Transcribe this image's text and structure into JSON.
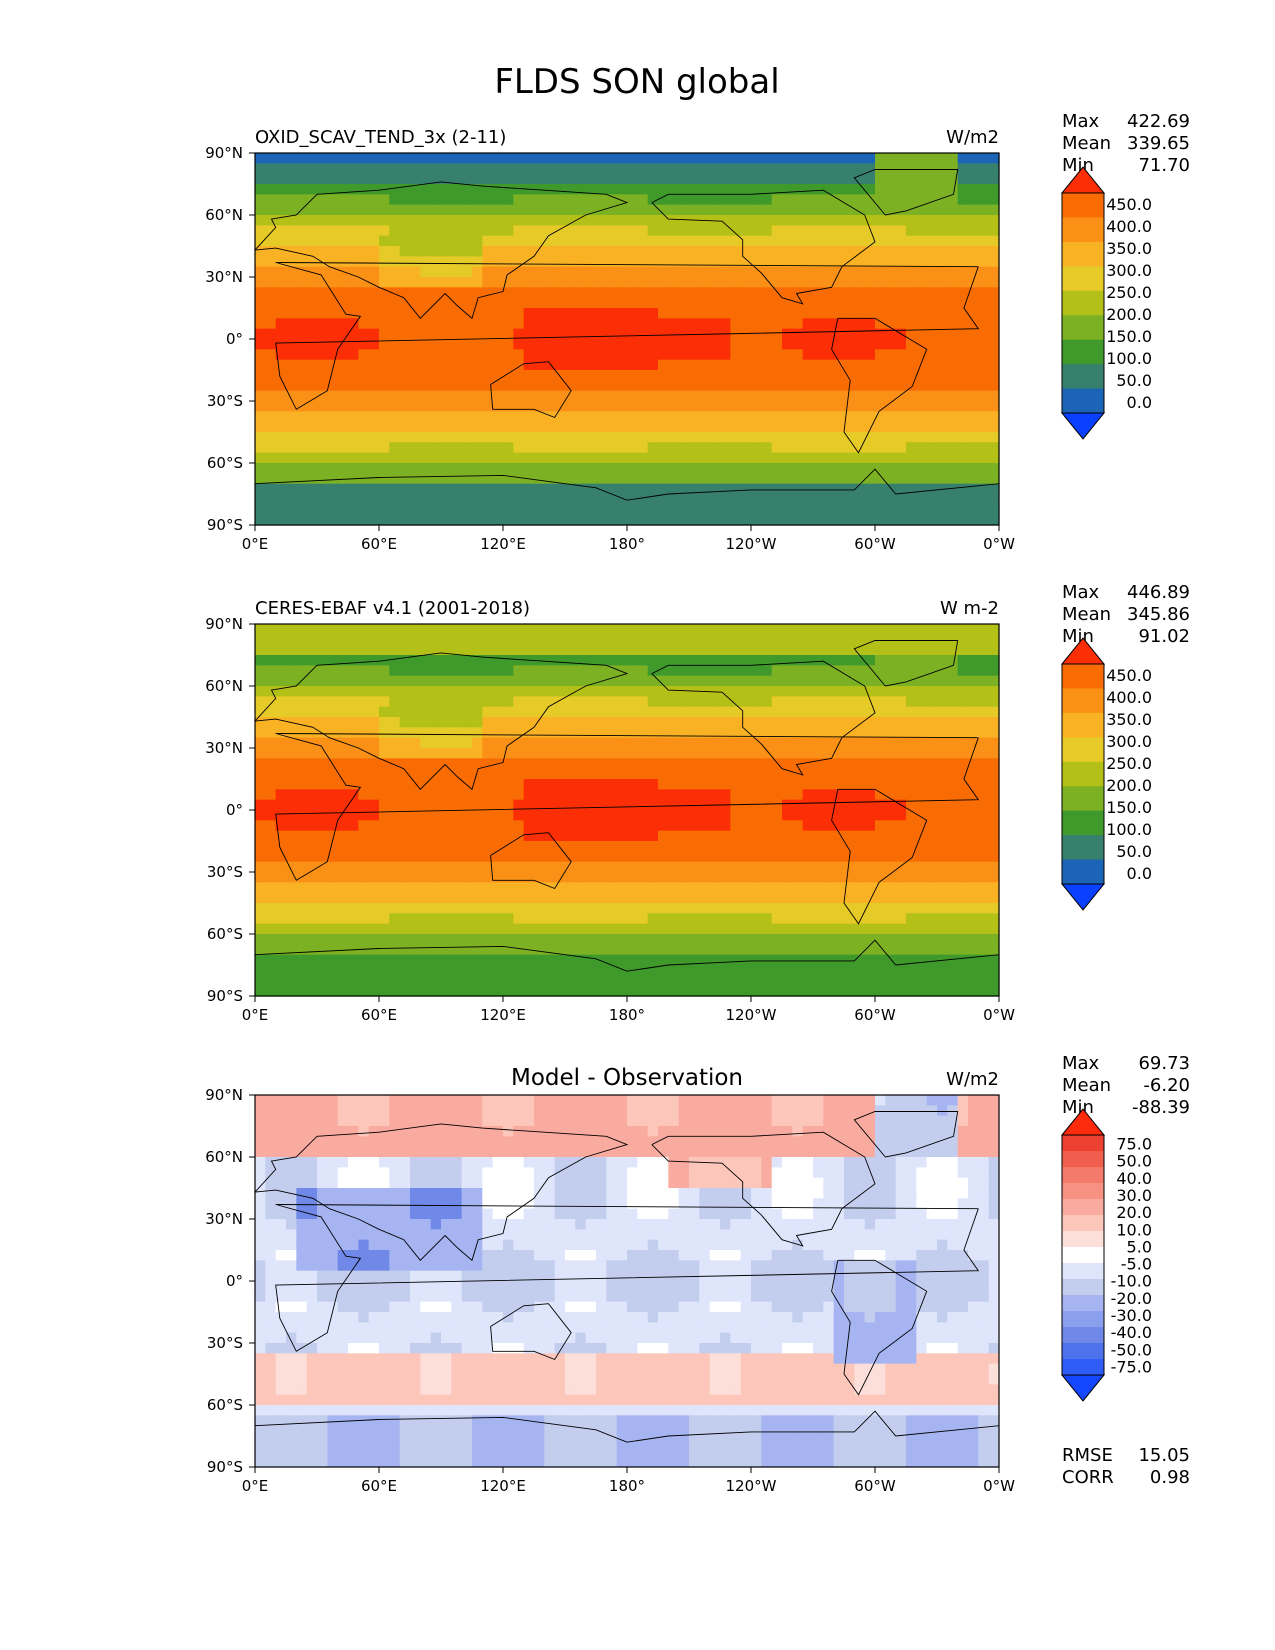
{
  "title": "FLDS SON global",
  "axis_ticks": {
    "lon": [
      "0°E",
      "60°E",
      "120°E",
      "180°",
      "120°W",
      "60°W",
      "0°W"
    ],
    "lat": [
      "90°N",
      "60°N",
      "30°N",
      "0°",
      "30°S",
      "60°S",
      "90°S"
    ]
  },
  "colors": {
    "abs_scale": [
      "#0a40ff",
      "#1c65b6",
      "#37806e",
      "#3f9a2b",
      "#7bb122",
      "#b2c018",
      "#e6ca28",
      "#fab225",
      "#fa9015",
      "#f96c04",
      "#fb2e05"
    ],
    "diff_scale": [
      "#1447ff",
      "#2f5cf6",
      "#4e71ec",
      "#7089e8",
      "#8aa0ee",
      "#a6b5f2",
      "#c3ceef",
      "#dfe5fb",
      "#ffffff",
      "#fcdfd8",
      "#fcc6bb",
      "#faab9f",
      "#f79283",
      "#f47a6b",
      "#f05f4e",
      "#ec4030",
      "#fe2a0c"
    ]
  },
  "panels": [
    {
      "left_title": "OXID_SCAV_TEND_3x (2-11)",
      "right_title": "W/m2",
      "center_title": "",
      "stats": [
        {
          "label": "Max",
          "value": "422.69"
        },
        {
          "label": "Mean",
          "value": "339.65"
        },
        {
          "label": "Min",
          "value": "71.70"
        }
      ],
      "colorbar": {
        "labels": [
          "450.0",
          "400.0",
          "350.0",
          "300.0",
          "250.0",
          "200.0",
          "150.0",
          "100.0",
          "50.0",
          "0.0"
        ],
        "scale": "abs"
      },
      "extra_stats": [],
      "field": "model"
    },
    {
      "left_title": "CERES-EBAF v4.1 (2001-2018)",
      "right_title": "W m-2",
      "center_title": "",
      "stats": [
        {
          "label": "Max",
          "value": "446.89"
        },
        {
          "label": "Mean",
          "value": "345.86"
        },
        {
          "label": "Min",
          "value": "91.02"
        }
      ],
      "colorbar": {
        "labels": [
          "450.0",
          "400.0",
          "350.0",
          "300.0",
          "250.0",
          "200.0",
          "150.0",
          "100.0",
          "50.0",
          "0.0"
        ],
        "scale": "abs"
      },
      "extra_stats": [],
      "field": "obs"
    },
    {
      "left_title": "",
      "right_title": "W/m2",
      "center_title": "Model - Observation",
      "stats": [
        {
          "label": "Max",
          "value": "69.73"
        },
        {
          "label": "Mean",
          "value": "-6.20"
        },
        {
          "label": "Min",
          "value": "-88.39"
        }
      ],
      "colorbar": {
        "labels": [
          "75.0",
          "50.0",
          "40.0",
          "30.0",
          "20.0",
          "10.0",
          "5.0",
          "-5.0",
          "-10.0",
          "-20.0",
          "-30.0",
          "-40.0",
          "-50.0",
          "-75.0"
        ],
        "scale": "diff"
      },
      "extra_stats": [
        {
          "label": "RMSE",
          "value": "15.05"
        },
        {
          "label": "CORR",
          "value": "0.98"
        }
      ],
      "field": "diff"
    }
  ]
}
